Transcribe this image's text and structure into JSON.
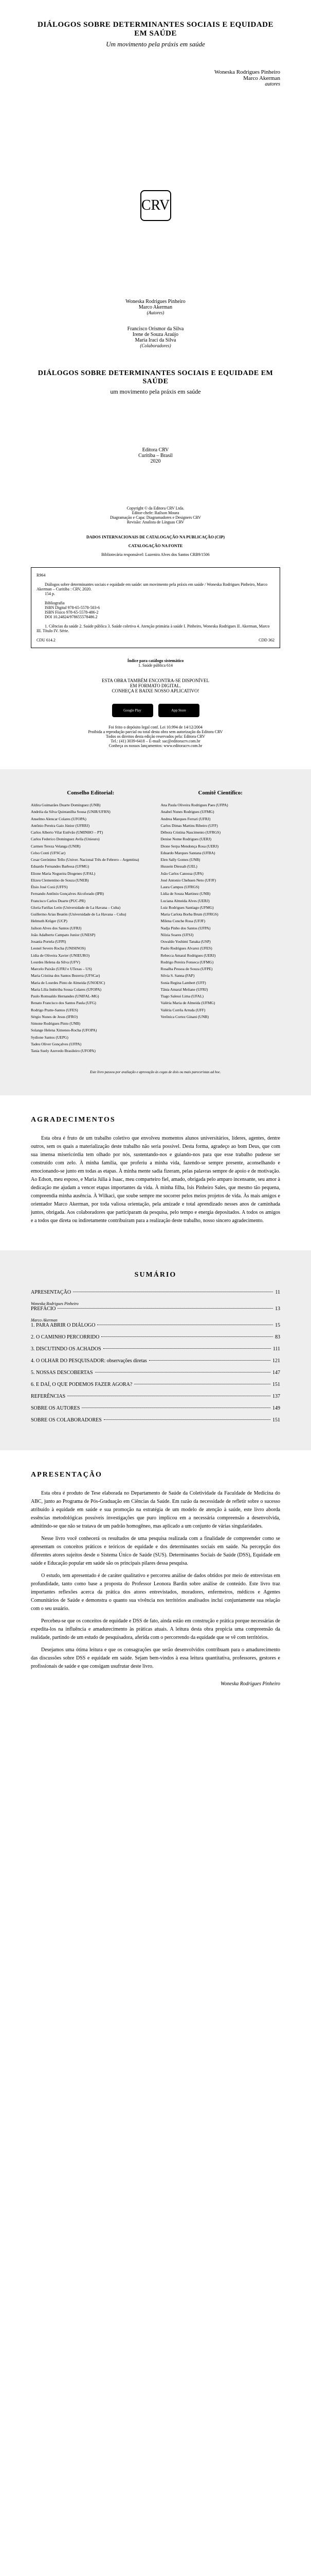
{
  "title": {
    "main": "DIÁLOGOS SOBRE DETERMINANTES SOCIAIS E EQUIDADE EM SAÚDE",
    "subtitle_italic": "Um movimento pela práxis em saúde",
    "subtitle_plain": "um movimento pela práxis em saúde"
  },
  "authors_top": {
    "a1": "Woneska Rodrigues Pinheiro",
    "a2": "Marco Akerman",
    "label": "autores"
  },
  "crv": "CRV",
  "contributors": {
    "authors": {
      "n1": "Woneska Rodrigues Pinheiro",
      "n2": "Marco Akerman",
      "label": "(Autores)"
    },
    "collaborators": {
      "n1": "Francisco Orismor da Silva",
      "n2": "Irene de Souza Araújo",
      "n3": "Maria Iraci da Silva",
      "label": "(Colaboradores)"
    }
  },
  "publisher": {
    "name": "Editora CRV",
    "city": "Curitiba – Brasil",
    "year": "2020"
  },
  "copyright": {
    "line1": "Copyright © da Editora CRV Ltda.",
    "line2": "Editor-chefe: Railson Moura",
    "line3": "Diagramação e Capa: Diagramadores e Designers CRV",
    "line4": "Revisão: Analista de Línguas CRV",
    "catalog_header1": "DADOS INTERNACIONAIS DE CATALOGAÇÃO NA PUBLICAÇÃO (CIP)",
    "catalog_header2": "CATALOGAÇÃO NA FONTE",
    "catalog_header3": "Bibliotecária responsável: Luzenira Alves dos Santos CRB9/1506",
    "catalog_ref": "R964",
    "catalog_body": "Diálogos sobre determinantes sociais e equidade em saúde: um movimento pela práxis em saúde / Woneska Rodrigues Pinheiro, Marco Akerman – Curitiba : CRV, 2020.",
    "catalog_pages": "154 p.",
    "catalog_bib": "Bibliografia",
    "catalog_isbn1": "ISBN Digital 978-65-5578-503-6",
    "catalog_isbn2": "ISBN Físico 978-65-5578-486-2",
    "catalog_doi": "DOI 10.24824/978655578486.2",
    "catalog_subjects": "1. Ciências da saúde 2. Saúde pública 3. Saúde coletiva 4. Atenção primária à saúde I. Pinheiro, Woneska Rodrigues II. Akerman, Marco III. Título IV. Série.",
    "catalog_cdu": "CDU 614.2",
    "catalog_cdd": "CDD 362",
    "index_title": "Índice para catálogo sistemático",
    "index_line": "1. Saúde pública 614",
    "esta_obra1": "ESTA OBRA TAMBÉM ENCONTRA-SE DISPONÍVEL",
    "esta_obra2": "EM FORMATO DIGITAL.",
    "esta_obra3": "CONHEÇA E BAIXE NOSSO APLICATIVO!",
    "badge1": "Google Play",
    "badge2": "App Store",
    "legal1": "Foi feito o depósito legal conf. Lei 10.994 de 14/12/2004",
    "legal2": "Proibida a reprodução parcial ou total desta obra sem autorização da Editora CRV",
    "legal3": "Todos os direitos desta edição reservados pela: Editora CRV",
    "legal4": "Tel.: (41) 3039-6418 – E-mail: sac@editoracrv.com.br",
    "legal5": "Conheça os nossos lançamentos: www.editoracrv.com.br"
  },
  "councils": {
    "editorial_title": "Conselho Editorial:",
    "scientific_title": "Comitê Científico:",
    "editorial": [
      "Aldira Guimarães Duarte Domínguez (UNB)",
      "Andréia da Silva Quintanilha Sousa (UNIR/UFRN)",
      "Anselmo Alencar Colares (UFOPA)",
      "Antônio Pereira Gaio Júnior (UFRRJ)",
      "Carlos Alberto Vilar Estêvão (UMINHO – PT)",
      "Carlos Federico Dominguez Avila (Unieuro)",
      "Carmen Tereza Velanga (UNIR)",
      "Celso Conti (UFSCar)",
      "Cesar Gerónimo Tello (Univer. Nacional Três de Febrero – Argentina)",
      "Eduardo Fernandes Barbosa (UFMG)",
      "Elione Maria Nogueira Diogenes (UFAL)",
      "Elizeu Clementino de Souza (UNEB)",
      "Élsio José Corá (UFFS)",
      "Fernando Antônio Gonçalves Alcoforado (IPB)",
      "Francisco Carlos Duarte (PUC-PR)",
      "Gloria Fariñas León (Universidade de La Havana – Cuba)",
      "Guillermo Arias Beatón (Universidade de La Havana – Cuba)",
      "Helmuth Krüger (UCP)",
      "Jailson Alves dos Santos (UFRJ)",
      "João Adalberto Campato Junior (UNESP)",
      "Josania Portela (UFPI)",
      "Leonel Severo Rocha (UNISINOS)",
      "Lídia de Oliveira Xavier (UNIEURO)",
      "Lourdes Helena da Silva (UFV)",
      "Marcelo Paixão (UFRJ e UTexas – US)",
      "Maria Cristina dos Santos Bezerra (UFSCar)",
      "Maria de Lourdes Pinto de Almeida (UNOESC)",
      "Maria Lília Imbiriba Sousa Colares (UFOPA)",
      "Paulo Romualdo Hernandes (UNIFAL-MG)",
      "Renato Francisco dos Santos Paula (UFG)",
      "Rodrigo Pratte-Santos (UFES)",
      "Sérgio Nunes de Jesus (IFRO)",
      "Simone Rodrigues Pinto (UNB)",
      "Solange Helena Ximenes-Rocha (UFOPA)",
      "Sydione Santos (UEPG)",
      "Tadeu Oliver Gonçalves (UFPA)",
      "Tania Suely Azevedo Brasileiro (UFOPA)"
    ],
    "scientific": [
      "Ana Paula Oliveira Rodrigues Paes (UFPA)",
      "Anabel Nunes Rodrigues (UFMG)",
      "Andrea Marques Ferrari (UFRJ)",
      "Carlos Dimas Martins Ribeiro (UFF)",
      "Débora Cristina Nascimento (UFRGS)",
      "Denise Nome Rodrigues (UERJ)",
      "Dione Serpa Mendonça Rosa (UERJ)",
      "Eduardo Marques Santana (UFBA)",
      "Elen Sally Gomes (UNB)",
      "Hussein Diessah (UEL)",
      "João Carlos Canossa (UPA)",
      "José Antonio Chehuen Neto (UFJF)",
      "Laura Campos (UFRGS)",
      "Lídia de Souza Martinez (UNB)",
      "Luciana Almeida Alves (UERJ)",
      "Luiz Rodrigues Santiago (UFMG)",
      "Maria Carlota Borba Brum (UFRGS)",
      "Milena Conche Rosa (UFJF)",
      "Nadja Pinho dos Santos (UFPA)",
      "Nilzia Soares (UFSJ)",
      "Oswaldo Yoshimi Tanaka (USP)",
      "Paulo Rodrigues Alvarez (UFES)",
      "Rebecca Amaral Rodrigues (UERJ)",
      "Rodrigo Pereira Fonseca (UFMG)",
      "Rosalba Pessoa de Souza (UFPE)",
      "Silvia S. Sanna (FAP)",
      "Sonia Regina Lambert (UFF)",
      "Tânia Amaral Meliane (UFRJ)",
      "Tiago Salessi Lima (UFAL)",
      "Valéria Maria de Almeida (UFMG)",
      "Valéria Corrêa Arruda (UFF)",
      "Verônica Cortez Ginani (UNB)"
    ],
    "peer_note": "Este livro passou por avaliação e aprovação às cegas de dois ou mais pareceristas ad hoc."
  },
  "agradecimentos": {
    "title": "AGRADECIMENTOS",
    "p1": "Esta obra é fruto de um trabalho coletivo que envolveu momentos alunos universitários, líderes, agentes, dentre outros, sem os quais a materialização deste trabalho não seria possível. Desta forma, agradeço ao bom Deus, que com sua imensa misericórdia tem olhado por nós, sustentando-nos e guiando-nos para que esse trabalho pudesse ser construído com zelo. À minha família, que proferiu a minha vida, fazendo-se sempre presente, aconselhando e emocionando-se junto em todas as etapas. À minha mente sadia fizeram, pelas palavras sempre de apoio e de motivação. Ao Edson, meu esposo, e Maria Júlia à Isaac, meu comparteiro fiel, amado, obrigada pelo amparo incensante, seu amor à dedicação me ajudam a vencer etapas importantes da vida. À minha filha, Isis Pinheiro Sales, que mesmo tão pequena, compreendia minha ausência. À Wilkaci, que soube sempre me socorrer pelos meios projetos de vida. Às mais amigos e orientador Marco Akerman, por toda valiosa orientação, pela amizade e total aprendizado nesses anos de caminhada juntos, obrigada. Aos colaboradores que participaram da pesquisa, pelo tempo e energia depositados. A todos os amigos e a todos que direta ou indiretamente contribuíram para a realização deste trabalho, nosso sincero agradecimento."
  },
  "sumario": {
    "title": "SUMÁRIO",
    "items": [
      {
        "label": "APRESENTAÇÃO",
        "page": "11",
        "author": "Woneska Rodrigues Pinheiro"
      },
      {
        "label": "PREFÁCIO",
        "page": "13",
        "author": "Marco Akerman"
      },
      {
        "label": "1. PARA ABRIR O DIÁLOGO",
        "page": "15"
      },
      {
        "label": "2. O CAMINHO PERCORRIDO",
        "page": "83"
      },
      {
        "label": "3. DISCUTINDO OS ACHADOS",
        "page": "111"
      },
      {
        "label": "4. O OLHAR DO PESQUISADOR: observações diretas",
        "page": "121"
      },
      {
        "label": "5. NOSSAS DESCOBERTAS",
        "page": "147"
      },
      {
        "label": "6. E DAÍ, O QUE PODEMOS FAZER AGORA?",
        "page": "151"
      },
      {
        "label": "REFERÊNCIAS",
        "page": "137"
      },
      {
        "label": "SOBRE OS AUTORES",
        "page": "149"
      },
      {
        "label": "SOBRE OS COLABORADORES",
        "page": "151"
      }
    ]
  },
  "apresentacao": {
    "title": "APRESENTAÇÃO",
    "p1": "Esta obra é produto de Tese elaborada no Departamento de Saúde da Coletividade da Faculdade de Medicina do ABC, junto ao Programa de Pós-Graduação em Ciências da Saúde. Em razão da necessidade de refletir sobre o sucesso atribuído à equidade em saúde e sua promoção na estratégia de um modelo de atenção à saúde, este livro aborda essências metodológicas possíveis investigações que puro implicou em a necessária compreensão a desenvolvida, admitindo-se que não se tratava de um padrão homogêneo, mas aplicado a um conjunto de várias singularidades.",
    "p2": "Nesse livro você conhecerá os resultados de uma pesquisa realizada com a finalidade de compreender como se apresentam os conceitos práticos e teóricos de equidade e dos determinantes sociais em saúde. Na percepção dos diferentes atores sujeitos desde o Sistema Único de Saúde (SUS). Determinantes Sociais de Saúde (DSS), Equidade em saúde e Educação popular em saúde são os principais pilares dessa pesquisa.",
    "p3": "O estudo, tem apresentado é de caráter qualitativo e percorreu análise de dados obtidos por meio de entrevistas em profundidade, tanto como base a proposta do Professor Leonora Bardin sobre análise de conteúdo. Este livro traz importantes reflexões acerca da prática dos atores entrevistados, moradores, enfermeiros, médicos e Agentes Comunitários de Saúde e demonstra o quanto sua vivência nos territórios analisados inclui conjuntamente sua relação com o seu usuário.",
    "p4": "Percebeu-se que os conceitos de equidade e DSS de fato, ainda estão em construção e prática porque necessárias de expedita-los na influência e amadurecimento às práticas atuais. A leitura desta obra propicia uma compreensão da realidade, partindo de um estudo de pesquisadora, aferida com o percorrendo da equidade que se vê com territórios.",
    "p5": "Desejamos uma ótima leitura e que os consagrações que serão desenvolvidos contribuam para o amadurecimento das discussões sobre DSS e equidade em saúde. Sejam bem-vindos à essa leitura quantitativa, professores, gestores e profissionais de saúde e que consigam usufrutar deste livro.",
    "signature": "Woneska Rodrigues Pinheiro"
  }
}
